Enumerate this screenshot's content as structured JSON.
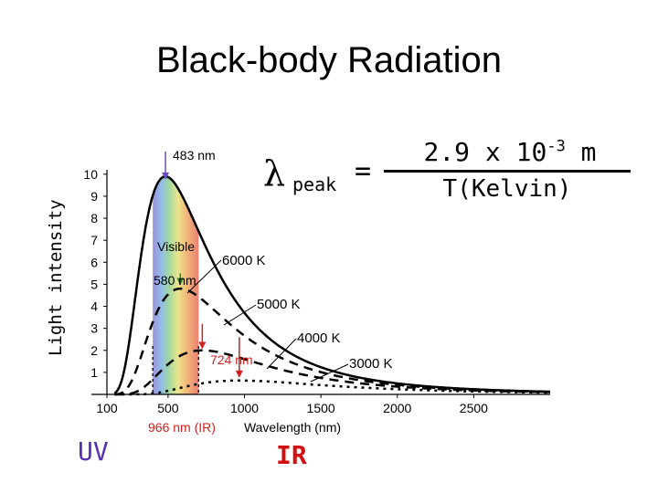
{
  "slide": {
    "title": "Black-body Radiation",
    "y_side_label": "Light intensity",
    "uv_label": "UV",
    "ir_label": "IR"
  },
  "formula": {
    "lambda": "λ",
    "subscript": "peak",
    "equals": "=",
    "numerator_base": "2.9 x 10",
    "numerator_exp": "-3",
    "numerator_unit": " m",
    "denominator": "T(Kelvin)"
  },
  "colors": {
    "curve": "#000000",
    "peak_arrow_6000": "#6a4cc0",
    "peak_arrow_5000": "#2c8a2c",
    "peak_arrow_4000": "#d02020",
    "peak_arrow_3000": "#d02020",
    "uv_text": "#5a2fb5",
    "ir_text": "#d01010"
  },
  "chart_data": {
    "type": "line",
    "xlabel": "Wavelength (nm)",
    "ylabel": "",
    "xlim": [
      100,
      3000
    ],
    "ylim": [
      0,
      10.2
    ],
    "x_ticks": [
      100,
      500,
      1000,
      1500,
      2000,
      2500
    ],
    "y_ticks": [
      1,
      2,
      3,
      4,
      5,
      6,
      7,
      8,
      9,
      10
    ],
    "visible_band": [
      400,
      700
    ],
    "visible_label": "Visible",
    "series": [
      {
        "name": "6000 K",
        "temperature": 6000,
        "peak_nm": 483,
        "peak_value": 9.9,
        "style": "solid"
      },
      {
        "name": "5000 K",
        "temperature": 5000,
        "peak_nm": 580,
        "peak_value": 4.8,
        "style": "dashed"
      },
      {
        "name": "4000 K",
        "temperature": 4000,
        "peak_nm": 724,
        "peak_value": 2.0,
        "style": "dashed"
      },
      {
        "name": "3000 K",
        "temperature": 3000,
        "peak_nm": 966,
        "peak_value": 0.63,
        "style": "dotted"
      }
    ],
    "annotations": [
      {
        "text": "483 nm",
        "x": 483
      },
      {
        "text": "580 nm",
        "x": 580
      },
      {
        "text": "724 nm",
        "x": 724
      },
      {
        "text": "966 nm (IR)",
        "x": 966
      }
    ]
  }
}
